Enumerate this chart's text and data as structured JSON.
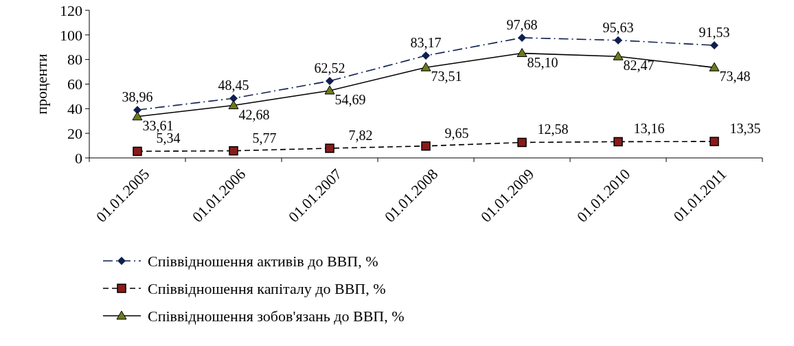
{
  "chart_data": {
    "type": "line",
    "categories": [
      "01.01.2005",
      "01.01.2006",
      "01.01.2007",
      "01.01.2008",
      "01.01.2009",
      "01.01.2010",
      "01.01.2011"
    ],
    "ylabel": "проценти",
    "ylim": [
      0,
      120
    ],
    "yticks": [
      0,
      20,
      40,
      60,
      80,
      100,
      120
    ],
    "grid": false,
    "legend": "bottom",
    "series": [
      {
        "name": "Співвідношення активів до ВВП, %",
        "color": "#0f1f4f",
        "marker": "diamond",
        "line_style": "dashdot",
        "values": [
          38.96,
          48.45,
          62.52,
          83.17,
          97.68,
          95.63,
          91.53
        ],
        "value_labels": [
          "38,96",
          "48,45",
          "62,52",
          "83,17",
          "97,68",
          "95,63",
          "91,53"
        ]
      },
      {
        "name": "Співвідношення капіталу до ВВП, %",
        "color": "#8b1a1a",
        "marker": "square",
        "line_style": "dashed",
        "values": [
          5.34,
          5.77,
          7.82,
          9.65,
          12.58,
          13.16,
          13.35
        ],
        "value_labels": [
          "5,34",
          "5,77",
          "7,82",
          "9,65",
          "12,58",
          "13,16",
          "13,35"
        ]
      },
      {
        "name": "Співвідношення зобов'язань до ВВП, %",
        "color": "#6b7a1e",
        "marker": "triangle",
        "line_style": "solid",
        "values": [
          33.61,
          42.68,
          54.69,
          73.51,
          85.1,
          82.47,
          73.48
        ],
        "value_labels": [
          "33,61",
          "42,68",
          "54,69",
          "73,51",
          "85,10",
          "82,47",
          "73,48"
        ]
      }
    ]
  }
}
